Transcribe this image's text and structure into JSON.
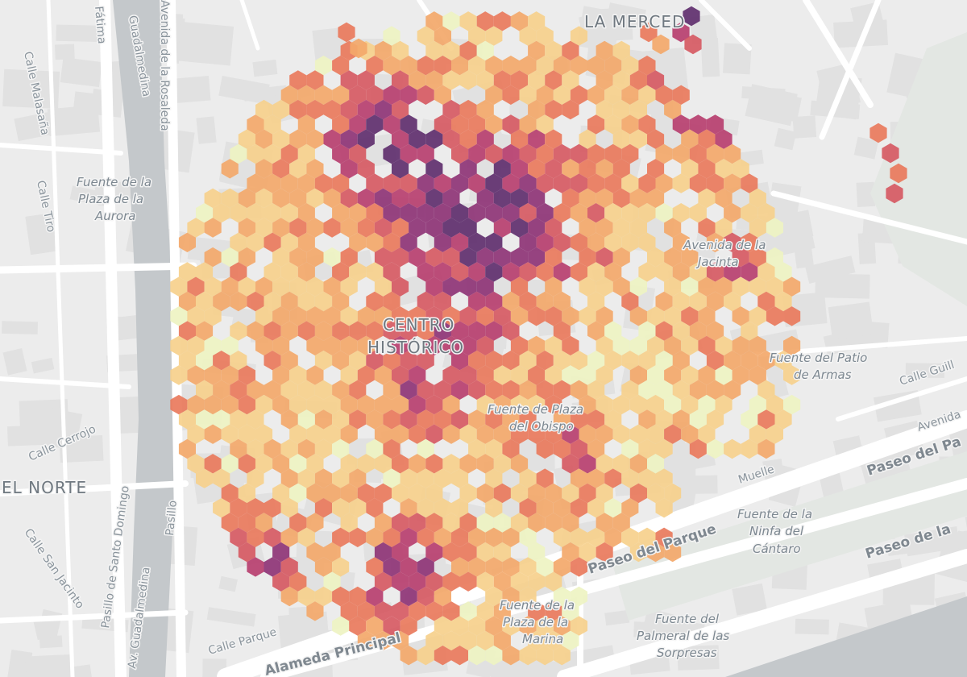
{
  "map": {
    "colors": {
      "water": "#c4c8cb",
      "land": "#ececec",
      "block": "#e1e1e1",
      "street": "#ffffff",
      "park": "#e3e7e3",
      "hex_ramp": [
        "#eef3c2",
        "#f6d08c",
        "#f3a86a",
        "#e97a5c",
        "#d65a63",
        "#b73f6f",
        "#8e3476",
        "#5f2f6e"
      ]
    },
    "labels": {
      "la_merced": "LA MERCED",
      "centro_historico_1": "CENTRO",
      "centro_historico_2": "HISTÓRICO",
      "el_norte": "EL NORTE",
      "fuente_aurora": [
        "Fuente de la",
        "Plaza de la",
        "Aurora"
      ],
      "fuente_obispo": [
        "Fuente de Plaza",
        "del Obispo"
      ],
      "fuente_patio": [
        "Fuente del Patio",
        "de Armas"
      ],
      "fuente_ninfa": [
        "Fuente de la",
        "Ninfa del",
        "Cántaro"
      ],
      "fuente_marina": [
        "Fuente de la",
        "Plaza de la",
        "Marina"
      ],
      "fuente_palmeral": [
        "Fuente del",
        "Palmeral de las",
        "Sorpresas"
      ],
      "avenida_rosaleda": "Avenida de la Rosaleda",
      "avenida_guadalmedina_top": "Guadalmedina",
      "calle_fatima": "Fátima",
      "calle_malasana": "Calle Malasaña",
      "calle_tiro": "Calle Tiro",
      "calle_cerrojo": "Calle Cerrojo",
      "calle_san_jacinto": "Calle San Jacinto",
      "pasillo_santo_domingo": "Pasillo de Santo Domingo",
      "avenida_guadalmedina_bottom": "Av. Guadalmedina",
      "pasillo_left_east": "Pasillo",
      "paseo_parque": "Paseo del Parque",
      "paseo_parque_right": "Paseo del Pa",
      "paseo_right": "Paseo de la",
      "alameda_principal": "Alameda Principal",
      "calle_parque": "Calle Parque",
      "calle_guill": "Calle Guill",
      "avenida_right": "Avenida",
      "muelle": "Muelle",
      "avenida_jacinta": [
        "Avenida de la",
        "Jacinta"
      ]
    }
  }
}
